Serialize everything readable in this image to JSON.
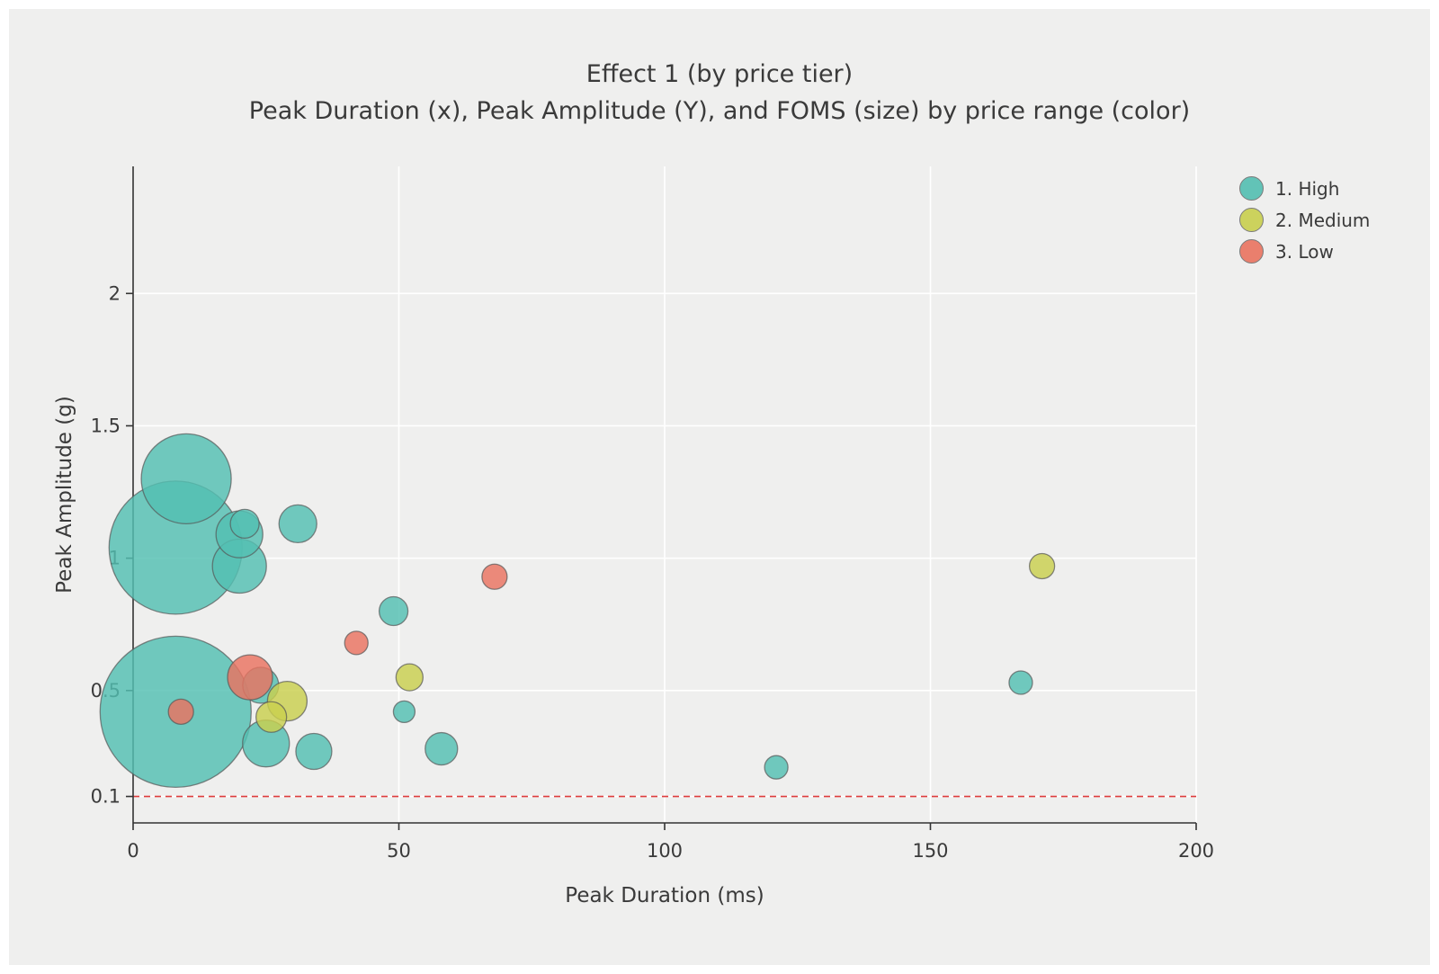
{
  "chart_data": {
    "type": "scatter",
    "title": "Effect 1 (by price tier)",
    "subtitle": "Peak Duration (x), Peak Amplitude (Y), and FOMS (size) by price range (color)",
    "xlabel": "Peak Duration (ms)",
    "ylabel": "Peak Amplitude (g)",
    "xlim": [
      0,
      200
    ],
    "ylim": [
      0,
      2.48
    ],
    "x_ticks": [
      0,
      50,
      100,
      150,
      200
    ],
    "y_ticks": [
      0.1,
      0.5,
      1,
      1.5,
      2
    ],
    "grid": true,
    "grid_color": "#ffffff",
    "background": "#efefee",
    "threshold_line": {
      "y": 0.1,
      "color": "#dd3c3c",
      "style": "dashed"
    },
    "legend_position": "top-right",
    "legend": [
      {
        "label": "1. High",
        "color": "#53bfb2"
      },
      {
        "label": "2. Medium",
        "color": "#c9cf4e"
      },
      {
        "label": "3. Low",
        "color": "#ea7360"
      }
    ],
    "series": [
      {
        "name": "1. High",
        "color": "#53bfb2",
        "points": [
          {
            "x": 10,
            "y": 1.3,
            "size": 50
          },
          {
            "x": 8,
            "y": 1.04,
            "size": 74
          },
          {
            "x": 20,
            "y": 1.09,
            "size": 26
          },
          {
            "x": 21,
            "y": 1.13,
            "size": 16
          },
          {
            "x": 20,
            "y": 0.97,
            "size": 30
          },
          {
            "x": 31,
            "y": 1.13,
            "size": 21
          },
          {
            "x": 8,
            "y": 0.42,
            "size": 84
          },
          {
            "x": 24,
            "y": 0.52,
            "size": 20
          },
          {
            "x": 25,
            "y": 0.3,
            "size": 26
          },
          {
            "x": 34,
            "y": 0.27,
            "size": 20
          },
          {
            "x": 49,
            "y": 0.8,
            "size": 16
          },
          {
            "x": 51,
            "y": 0.42,
            "size": 12
          },
          {
            "x": 58,
            "y": 0.28,
            "size": 18
          },
          {
            "x": 121,
            "y": 0.21,
            "size": 13
          },
          {
            "x": 167,
            "y": 0.53,
            "size": 13
          }
        ]
      },
      {
        "name": "2. Medium",
        "color": "#c9cf4e",
        "points": [
          {
            "x": 29,
            "y": 0.46,
            "size": 22
          },
          {
            "x": 26,
            "y": 0.4,
            "size": 17
          },
          {
            "x": 52,
            "y": 0.55,
            "size": 15
          },
          {
            "x": 171,
            "y": 0.97,
            "size": 14
          }
        ]
      },
      {
        "name": "3. Low",
        "color": "#ea7360",
        "points": [
          {
            "x": 22,
            "y": 0.55,
            "size": 25
          },
          {
            "x": 9,
            "y": 0.42,
            "size": 14
          },
          {
            "x": 42,
            "y": 0.68,
            "size": 13
          },
          {
            "x": 68,
            "y": 0.93,
            "size": 14
          }
        ]
      }
    ]
  }
}
